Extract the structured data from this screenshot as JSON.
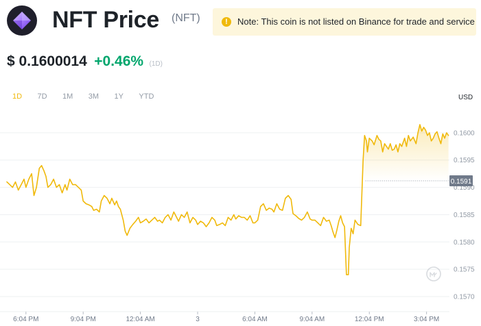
{
  "coin": {
    "name": "NFT Price",
    "symbol": "(NFT)",
    "logo_icon": "nft-diamond-icon"
  },
  "note": {
    "icon": "warning-icon",
    "icon_glyph": "!",
    "text": "Note: This coin is not listed on Binance for trade and service"
  },
  "price": {
    "value": "$ 0.1600014",
    "change": "+0.46%",
    "period": "(1D)"
  },
  "ranges": [
    {
      "label": "1D",
      "active": true
    },
    {
      "label": "7D",
      "active": false
    },
    {
      "label": "1M",
      "active": false
    },
    {
      "label": "3M",
      "active": false
    },
    {
      "label": "1Y",
      "active": false
    },
    {
      "label": "YTD",
      "active": false
    }
  ],
  "chart_data": {
    "type": "line",
    "ylabel": "USD",
    "ylim": [
      0.15685,
      0.16055
    ],
    "yticks": [
      {
        "value": 0.157,
        "label": "0.1570"
      },
      {
        "value": 0.1575,
        "label": "0.1575"
      },
      {
        "value": 0.158,
        "label": "0.1580"
      },
      {
        "value": 0.1585,
        "label": "0.1585"
      },
      {
        "value": 0.159,
        "label": "0.1590"
      },
      {
        "value": 0.1595,
        "label": "0.1595"
      },
      {
        "value": 0.16,
        "label": "0.1600"
      }
    ],
    "xticks": [
      {
        "x": 1,
        "label": "6:04 PM"
      },
      {
        "x": 4,
        "label": "9:04 PM"
      },
      {
        "x": 7,
        "label": "12:04 AM"
      },
      {
        "x": 10,
        "label": "3"
      },
      {
        "x": 13,
        "label": "6:04 AM"
      },
      {
        "x": 16,
        "label": "9:04 AM"
      },
      {
        "x": 19,
        "label": "12:04 PM"
      },
      {
        "x": 22,
        "label": "3:04 PM"
      }
    ],
    "xlim": [
      0,
      23.2
    ],
    "current_price": {
      "value": 0.15912,
      "label": "0.1591"
    },
    "line_color": "#f0b90b",
    "grid": true,
    "watermark_icon": "cmc-logo-icon",
    "series": [
      {
        "points": [
          [
            0.0,
            0.1591
          ],
          [
            0.15,
            0.15905
          ],
          [
            0.3,
            0.159
          ],
          [
            0.45,
            0.1591
          ],
          [
            0.6,
            0.15895
          ],
          [
            0.75,
            0.15905
          ],
          [
            0.9,
            0.15915
          ],
          [
            1.0,
            0.159
          ],
          [
            1.15,
            0.15915
          ],
          [
            1.3,
            0.15925
          ],
          [
            1.42,
            0.15885
          ],
          [
            1.55,
            0.159
          ],
          [
            1.7,
            0.15935
          ],
          [
            1.82,
            0.1594
          ],
          [
            1.95,
            0.1593
          ],
          [
            2.05,
            0.1592
          ],
          [
            2.15,
            0.159
          ],
          [
            2.3,
            0.15905
          ],
          [
            2.45,
            0.15915
          ],
          [
            2.6,
            0.159
          ],
          [
            2.75,
            0.15905
          ],
          [
            2.9,
            0.1589
          ],
          [
            3.05,
            0.15905
          ],
          [
            3.15,
            0.15895
          ],
          [
            3.3,
            0.15915
          ],
          [
            3.45,
            0.15905
          ],
          [
            3.6,
            0.15905
          ],
          [
            3.75,
            0.159
          ],
          [
            3.9,
            0.15895
          ],
          [
            4.0,
            0.15875
          ],
          [
            4.15,
            0.1587
          ],
          [
            4.3,
            0.15868
          ],
          [
            4.45,
            0.15865
          ],
          [
            4.55,
            0.15858
          ],
          [
            4.7,
            0.1586
          ],
          [
            4.85,
            0.15855
          ],
          [
            4.95,
            0.15875
          ],
          [
            5.1,
            0.15885
          ],
          [
            5.25,
            0.1588
          ],
          [
            5.4,
            0.1587
          ],
          [
            5.5,
            0.1588
          ],
          [
            5.65,
            0.15868
          ],
          [
            5.75,
            0.15875
          ],
          [
            5.85,
            0.15865
          ],
          [
            5.95,
            0.1586
          ],
          [
            6.1,
            0.1584
          ],
          [
            6.2,
            0.1582
          ],
          [
            6.3,
            0.15812
          ],
          [
            6.45,
            0.15825
          ],
          [
            6.6,
            0.15832
          ],
          [
            6.75,
            0.15838
          ],
          [
            6.9,
            0.15845
          ],
          [
            7.0,
            0.15835
          ],
          [
            7.15,
            0.15838
          ],
          [
            7.3,
            0.15842
          ],
          [
            7.45,
            0.15835
          ],
          [
            7.6,
            0.1584
          ],
          [
            7.75,
            0.15845
          ],
          [
            7.9,
            0.15838
          ],
          [
            8.0,
            0.1584
          ],
          [
            8.15,
            0.15835
          ],
          [
            8.3,
            0.15845
          ],
          [
            8.45,
            0.1585
          ],
          [
            8.6,
            0.1584
          ],
          [
            8.75,
            0.15855
          ],
          [
            8.9,
            0.15845
          ],
          [
            9.0,
            0.15838
          ],
          [
            9.15,
            0.1585
          ],
          [
            9.3,
            0.15845
          ],
          [
            9.45,
            0.15855
          ],
          [
            9.6,
            0.15835
          ],
          [
            9.75,
            0.15845
          ],
          [
            9.9,
            0.1584
          ],
          [
            10.0,
            0.15832
          ],
          [
            10.15,
            0.15838
          ],
          [
            10.3,
            0.15835
          ],
          [
            10.45,
            0.15828
          ],
          [
            10.6,
            0.15835
          ],
          [
            10.75,
            0.15845
          ],
          [
            10.9,
            0.1584
          ],
          [
            11.0,
            0.1583
          ],
          [
            11.15,
            0.15832
          ],
          [
            11.3,
            0.15835
          ],
          [
            11.45,
            0.1583
          ],
          [
            11.6,
            0.15845
          ],
          [
            11.75,
            0.1584
          ],
          [
            11.9,
            0.1585
          ],
          [
            12.0,
            0.15842
          ],
          [
            12.15,
            0.15848
          ],
          [
            12.3,
            0.15845
          ],
          [
            12.45,
            0.15845
          ],
          [
            12.6,
            0.1584
          ],
          [
            12.75,
            0.15848
          ],
          [
            12.9,
            0.15835
          ],
          [
            13.0,
            0.15835
          ],
          [
            13.15,
            0.1584
          ],
          [
            13.3,
            0.15865
          ],
          [
            13.45,
            0.1587
          ],
          [
            13.6,
            0.15858
          ],
          [
            13.75,
            0.15862
          ],
          [
            13.9,
            0.1586
          ],
          [
            14.0,
            0.15855
          ],
          [
            14.15,
            0.1587
          ],
          [
            14.3,
            0.1586
          ],
          [
            14.45,
            0.15858
          ],
          [
            14.6,
            0.1588
          ],
          [
            14.75,
            0.15885
          ],
          [
            14.9,
            0.15878
          ],
          [
            15.0,
            0.15852
          ],
          [
            15.15,
            0.15848
          ],
          [
            15.3,
            0.15843
          ],
          [
            15.45,
            0.1584
          ],
          [
            15.6,
            0.15845
          ],
          [
            15.75,
            0.15855
          ],
          [
            15.9,
            0.15842
          ],
          [
            16.0,
            0.1584
          ],
          [
            16.15,
            0.1584
          ],
          [
            16.3,
            0.15835
          ],
          [
            16.45,
            0.1583
          ],
          [
            16.6,
            0.15845
          ],
          [
            16.75,
            0.15838
          ],
          [
            16.9,
            0.1584
          ],
          [
            17.0,
            0.1583
          ],
          [
            17.1,
            0.15818
          ],
          [
            17.2,
            0.15808
          ],
          [
            17.3,
            0.15822
          ],
          [
            17.4,
            0.15838
          ],
          [
            17.5,
            0.15848
          ],
          [
            17.6,
            0.15835
          ],
          [
            17.7,
            0.15828
          ],
          [
            17.8,
            0.1574
          ],
          [
            17.9,
            0.1574
          ],
          [
            17.95,
            0.1579
          ],
          [
            18.05,
            0.15825
          ],
          [
            18.15,
            0.15815
          ],
          [
            18.25,
            0.1584
          ],
          [
            18.4,
            0.15832
          ],
          [
            18.55,
            0.1583
          ],
          [
            18.6,
            0.15878
          ],
          [
            18.67,
            0.15948
          ],
          [
            18.75,
            0.15995
          ],
          [
            18.85,
            0.15985
          ],
          [
            18.9,
            0.15965
          ],
          [
            19.0,
            0.1599
          ],
          [
            19.15,
            0.15985
          ],
          [
            19.25,
            0.15978
          ],
          [
            19.4,
            0.15995
          ],
          [
            19.5,
            0.15988
          ],
          [
            19.6,
            0.15985
          ],
          [
            19.7,
            0.15965
          ],
          [
            19.8,
            0.1598
          ],
          [
            19.9,
            0.15975
          ],
          [
            20.0,
            0.1597
          ],
          [
            20.1,
            0.1598
          ],
          [
            20.2,
            0.15968
          ],
          [
            20.3,
            0.1597
          ],
          [
            20.4,
            0.15978
          ],
          [
            20.5,
            0.15965
          ],
          [
            20.6,
            0.1598
          ],
          [
            20.7,
            0.15975
          ],
          [
            20.85,
            0.1599
          ],
          [
            20.95,
            0.15975
          ],
          [
            21.05,
            0.15995
          ],
          [
            21.15,
            0.15985
          ],
          [
            21.3,
            0.15992
          ],
          [
            21.45,
            0.1598
          ],
          [
            21.55,
            0.16
          ],
          [
            21.65,
            0.16015
          ],
          [
            21.75,
            0.16003
          ],
          [
            21.85,
            0.1601
          ],
          [
            21.95,
            0.16005
          ],
          [
            22.05,
            0.15995
          ],
          [
            22.15,
            0.16
          ],
          [
            22.25,
            0.15985
          ],
          [
            22.35,
            0.1599
          ],
          [
            22.45,
            0.15998
          ],
          [
            22.55,
            0.16002
          ],
          [
            22.65,
            0.1599
          ],
          [
            22.75,
            0.1598
          ],
          [
            22.85,
            0.15998
          ],
          [
            22.95,
            0.1599
          ],
          [
            23.05,
            0.16
          ],
          [
            23.15,
            0.15995
          ]
        ]
      }
    ]
  }
}
